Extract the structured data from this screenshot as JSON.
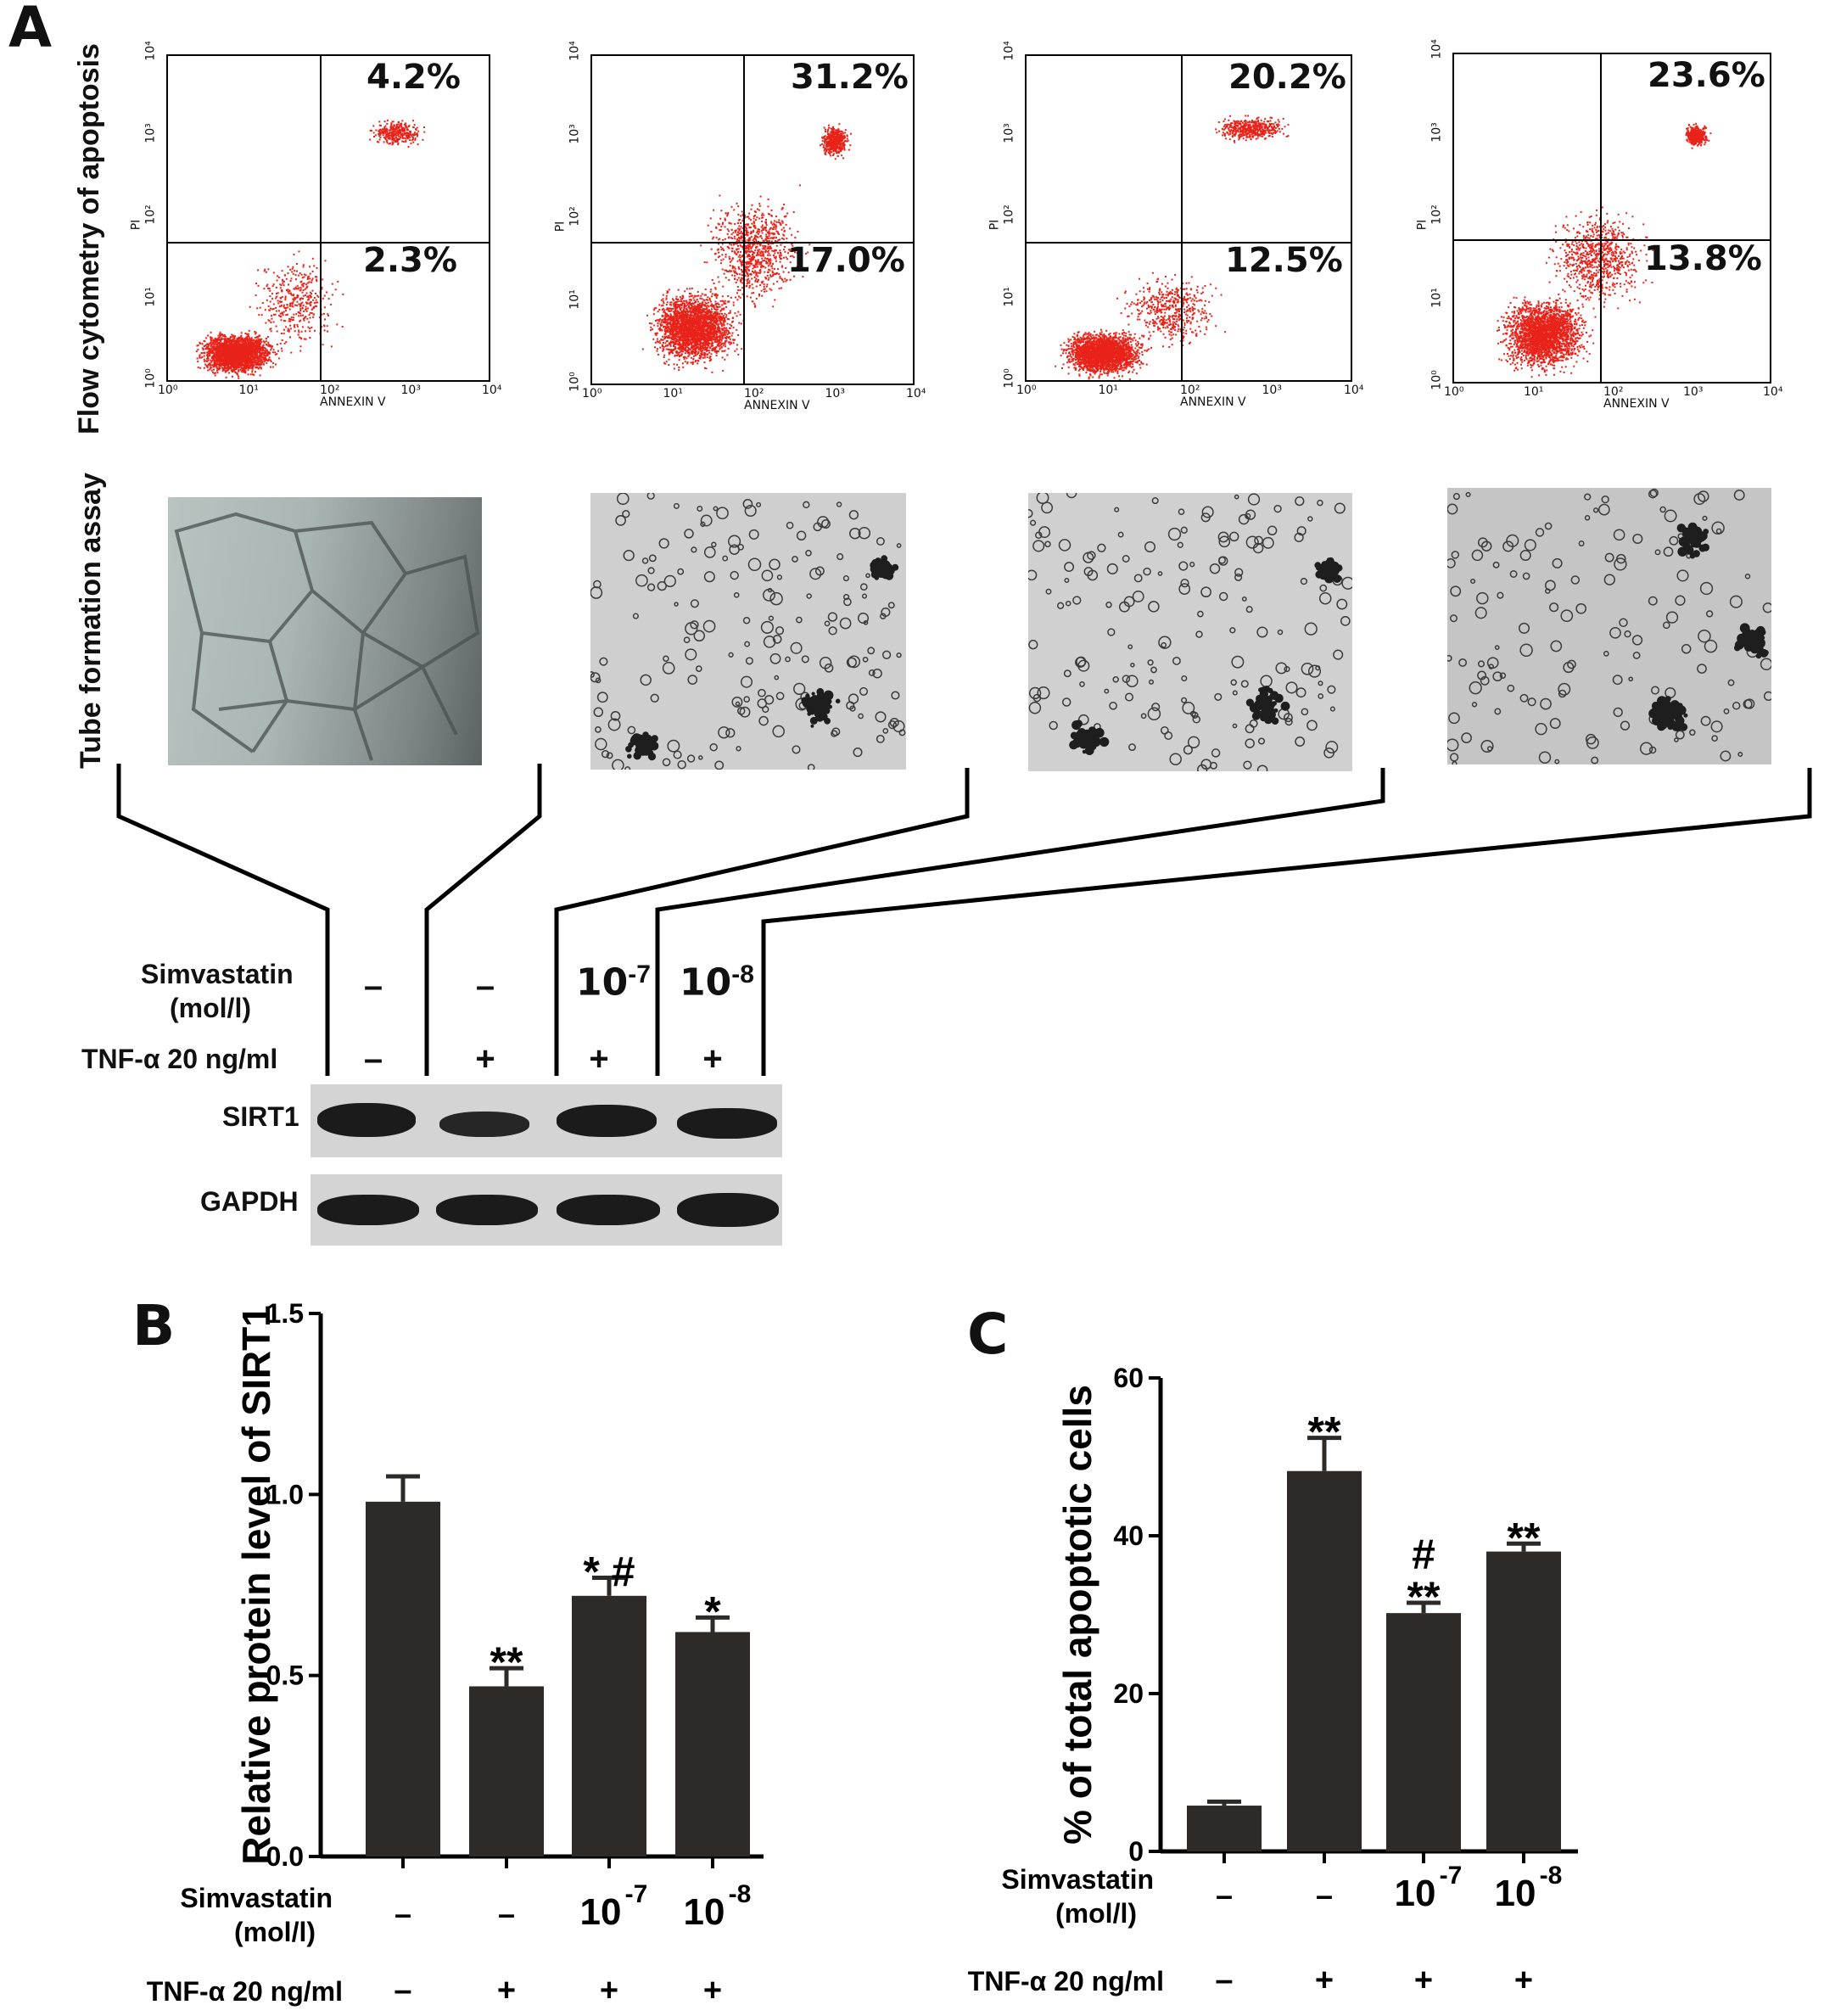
{
  "panel_labels": {
    "a": "A",
    "b": "B",
    "c": "C"
  },
  "panel_a": {
    "flow_label": "Flow cytometry of apoptosis",
    "tube_label": "Tube formation assay",
    "x_axis_label": "ANNEXIN V",
    "y_axis_label": "PI",
    "tick_labels": [
      "10⁰",
      "10¹",
      "10²",
      "10³",
      "10⁴"
    ],
    "flow_plots": [
      {
        "upper_right": "4.2%",
        "lower_right": "2.3%"
      },
      {
        "upper_right": "31.2%",
        "lower_right": "17.0%"
      },
      {
        "upper_right": "20.2%",
        "lower_right": "12.5%"
      },
      {
        "upper_right": "23.6%",
        "lower_right": "13.8%"
      }
    ],
    "western": {
      "simvastatin_label_1": "Simvastatin",
      "simvastatin_label_2": "(mol/l)",
      "tnf_label": "TNF-α 20 ng/ml",
      "simvastatin_values": [
        "–",
        "–",
        "10",
        "10"
      ],
      "simvastatin_exponents": [
        "",
        "",
        "-7",
        "-8"
      ],
      "tnf_values": [
        "–",
        "+",
        "+",
        "+"
      ],
      "bands": [
        "SIRT1",
        "GAPDH"
      ]
    }
  },
  "chart_data": [
    {
      "type": "bar",
      "panel": "B",
      "ylabel": "Relative protein level of SIRT1",
      "ylim": [
        0,
        1.5
      ],
      "yticks": [
        "0.0",
        "0.5",
        "1.0",
        "1.5"
      ],
      "categories": [
        "1",
        "2",
        "3",
        "4"
      ],
      "values": [
        0.98,
        0.47,
        0.72,
        0.62
      ],
      "errors": [
        0.07,
        0.05,
        0.05,
        0.04
      ],
      "annotations": [
        "",
        "**",
        "* #",
        "*"
      ],
      "row1_label_1": "Simvastatin",
      "row1_label_2": "(mol/l)",
      "row1_values": [
        "–",
        "–",
        "10",
        "10"
      ],
      "row1_exponents": [
        "",
        "",
        "-7",
        "-8"
      ],
      "row2_label": "TNF-α 20 ng/ml",
      "row2_values": [
        "–",
        "+",
        "+",
        "+"
      ]
    },
    {
      "type": "bar",
      "panel": "C",
      "ylabel": "% of total apoptotic cells",
      "ylim": [
        0,
        60
      ],
      "yticks": [
        "0",
        "20",
        "40",
        "60"
      ],
      "categories": [
        "1",
        "2",
        "3",
        "4"
      ],
      "values": [
        5.8,
        48.2,
        30.2,
        38.0
      ],
      "errors": [
        0.5,
        4.2,
        1.3,
        1.0
      ],
      "annotations": [
        "",
        "**",
        "#\n**",
        "**"
      ],
      "row1_label_1": "Simvastatin",
      "row1_label_2": "(mol/l)",
      "row1_values": [
        "–",
        "–",
        "10",
        "10"
      ],
      "row1_exponents": [
        "",
        "",
        "-7",
        "-8"
      ],
      "row2_label": "TNF-α 20 ng/ml",
      "row2_values": [
        "–",
        "+",
        "+",
        "+"
      ]
    }
  ],
  "colors": {
    "bar": "#2e2a28",
    "dots": "#e8231a",
    "axis": "#000000"
  }
}
